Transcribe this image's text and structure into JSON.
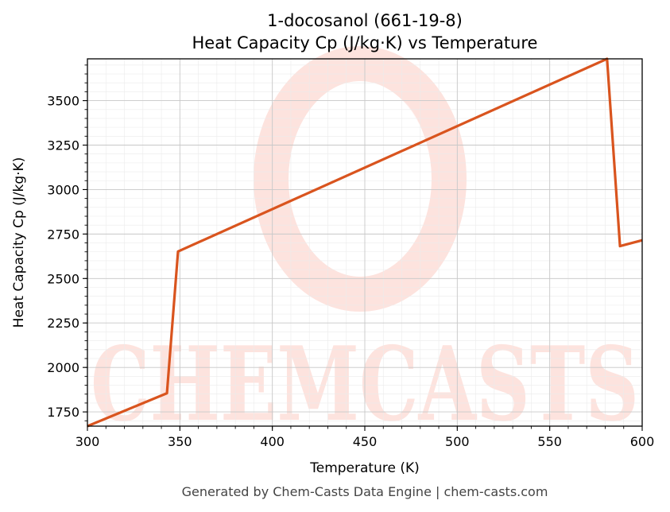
{
  "chart_data": {
    "type": "line",
    "title_line1": "1-docosanol (661-19-8)",
    "title_line2": "Heat Capacity Cp (J/kg·K) vs Temperature",
    "xlabel": "Temperature (K)",
    "ylabel": "Heat Capacity Cp (J/kg·K)",
    "xlim": [
      300,
      600
    ],
    "ylim": [
      1670,
      3735
    ],
    "x_ticks": [
      300,
      350,
      400,
      450,
      500,
      550,
      600
    ],
    "y_ticks": [
      1750,
      2000,
      2250,
      2500,
      2750,
      3000,
      3250,
      3500
    ],
    "grid": true,
    "series": [
      {
        "color": "#d9541e",
        "points": [
          [
            300,
            1670
          ],
          [
            343,
            1855
          ],
          [
            349,
            2652
          ],
          [
            581,
            3735
          ],
          [
            588,
            2682
          ],
          [
            600,
            2715
          ]
        ]
      }
    ]
  },
  "watermark": {
    "text": "CHEMCASTS",
    "color": "#fde3de"
  },
  "footer": "Generated by Chem-Casts Data Engine | chem-casts.com"
}
